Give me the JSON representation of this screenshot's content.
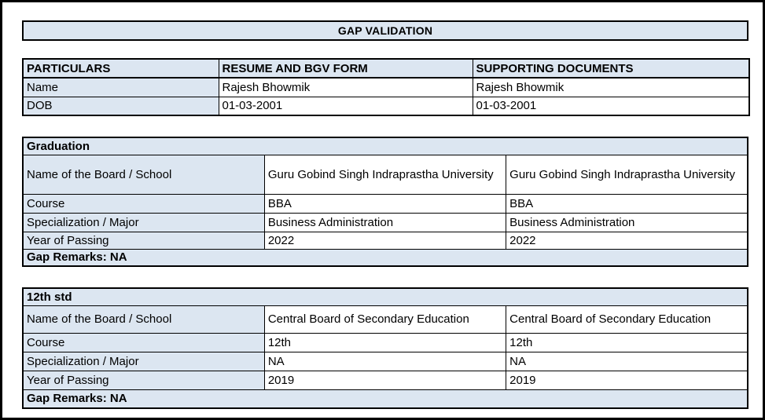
{
  "page": {
    "title": "GAP VALIDATION"
  },
  "colors": {
    "highlight_fill": "#dce6f1",
    "border": "#000000",
    "background": "#ffffff"
  },
  "particulars_table": {
    "headers": [
      "PARTICULARS",
      "RESUME AND BGV FORM",
      "SUPPORTING DOCUMENTS"
    ],
    "rows": [
      {
        "label": "Name",
        "resume": "Rajesh Bhowmik",
        "supporting": "Rajesh Bhowmik"
      },
      {
        "label": "DOB",
        "resume": "01-03-2001",
        "supporting": "01-03-2001"
      }
    ]
  },
  "sections": [
    {
      "title": "Graduation",
      "rows": [
        {
          "label": "Name of the Board / School",
          "resume": "Guru Gobind Singh Indraprastha University",
          "supporting": "Guru Gobind Singh Indraprastha University"
        },
        {
          "label": "Course",
          "resume": "BBA",
          "supporting": "BBA"
        },
        {
          "label": "Specialization / Major",
          "resume": "Business Administration",
          "supporting": "Business Administration"
        },
        {
          "label": "Year of Passing",
          "resume": "2022",
          "supporting": "2022"
        }
      ],
      "gap_remarks": "Gap Remarks: NA"
    },
    {
      "title": "12th std",
      "rows": [
        {
          "label": "Name of the Board / School",
          "resume": "Central Board of Secondary Education",
          "supporting": "Central Board of Secondary Education"
        },
        {
          "label": "Course",
          "resume": "12th",
          "supporting": "12th"
        },
        {
          "label": "Specialization / Major",
          "resume": "NA",
          "supporting": "NA"
        },
        {
          "label": "Year of Passing",
          "resume": "2019",
          "supporting": "2019"
        }
      ],
      "gap_remarks": "Gap Remarks: NA"
    }
  ]
}
